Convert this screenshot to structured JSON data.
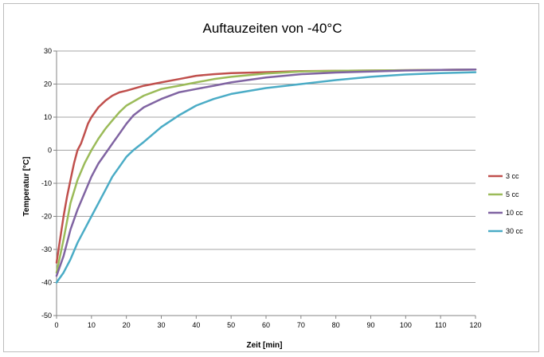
{
  "chart_data": {
    "type": "line",
    "title": "Auftauzeiten von -40°C",
    "xlabel": "Zeit [min]",
    "ylabel": "Temperatur [°C]",
    "xlim": [
      0,
      120
    ],
    "ylim": [
      -50,
      30
    ],
    "xticks": [
      0,
      10,
      20,
      30,
      40,
      50,
      60,
      70,
      80,
      90,
      100,
      110,
      120
    ],
    "yticks": [
      -50,
      -40,
      -30,
      -20,
      -10,
      0,
      10,
      20,
      30
    ],
    "grid": "horizontal major gridlines",
    "legend_position": "right",
    "series": [
      {
        "name": "3 cc",
        "color": "#c0504d",
        "x": [
          0,
          1,
          2,
          3,
          4,
          5,
          6,
          7,
          8,
          9,
          10,
          12,
          14,
          16,
          18,
          20,
          25,
          30,
          35,
          40,
          45,
          50,
          60,
          70,
          80,
          90,
          100,
          110,
          120
        ],
        "y": [
          -34,
          -27,
          -20,
          -14,
          -9,
          -4,
          0,
          2,
          5,
          8,
          10,
          13,
          15,
          16.5,
          17.5,
          18,
          19.5,
          20.5,
          21.5,
          22.5,
          23,
          23.3,
          23.6,
          23.9,
          24,
          24.1,
          24.2,
          24.3,
          24.4
        ]
      },
      {
        "name": "5 cc",
        "color": "#9bbb59",
        "x": [
          0,
          2,
          4,
          6,
          8,
          10,
          12,
          14,
          16,
          18,
          20,
          25,
          30,
          35,
          40,
          45,
          50,
          60,
          70,
          80,
          90,
          100,
          110,
          120
        ],
        "y": [
          -37,
          -27,
          -16,
          -9,
          -4,
          0,
          3.5,
          6.5,
          9,
          11.5,
          13.5,
          16.5,
          18.5,
          19.5,
          20.5,
          21.5,
          22.2,
          23.2,
          23.8,
          24,
          24.1,
          24.2,
          24.3,
          24.4
        ]
      },
      {
        "name": "10 cc",
        "color": "#8064a2",
        "x": [
          0,
          2,
          4,
          6,
          8,
          10,
          12,
          14,
          16,
          18,
          20,
          22,
          25,
          30,
          35,
          40,
          45,
          50,
          60,
          70,
          80,
          90,
          100,
          110,
          120
        ],
        "y": [
          -38,
          -32,
          -24,
          -18,
          -13,
          -8,
          -4,
          -1,
          2,
          5,
          8,
          10.5,
          13,
          15.5,
          17.5,
          18.5,
          19.5,
          20.5,
          22,
          23,
          23.5,
          23.8,
          24.1,
          24.3,
          24.4
        ]
      },
      {
        "name": "30 cc",
        "color": "#4bacc6",
        "x": [
          0,
          2,
          4,
          6,
          8,
          10,
          12,
          14,
          16,
          18,
          20,
          22,
          25,
          30,
          35,
          40,
          45,
          50,
          60,
          70,
          80,
          90,
          100,
          110,
          120
        ],
        "y": [
          -40,
          -37,
          -33,
          -28,
          -24,
          -20,
          -16,
          -12,
          -8,
          -5,
          -2,
          0,
          2.5,
          7,
          10.5,
          13.5,
          15.5,
          17,
          18.8,
          20,
          21.2,
          22.2,
          22.9,
          23.3,
          23.6
        ]
      }
    ]
  }
}
